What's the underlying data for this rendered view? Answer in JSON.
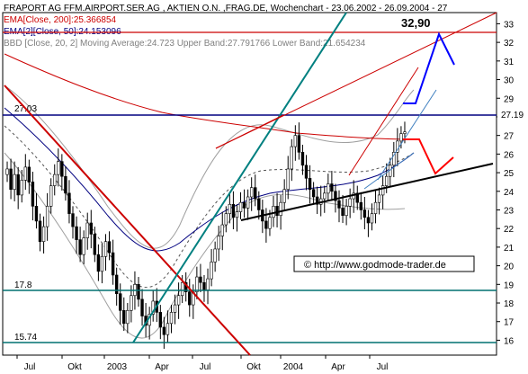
{
  "header": {
    "title": "FRAPORT AG FFM.AIRPORT.SER.AG , AKTIEN O.N. ,FRAG.DE, Wochenchart - 23.06.2002 - 26.09.2004 - 27",
    "ema200": "EMA[Close, 200]:25.366854",
    "ema50": "EMA[2][Close, 50]:24.153096",
    "bbd": "BBD [Close, 20, 2] Moving Average:24.723  Upper Band:27.791766 Lower Band:21.654234"
  },
  "annotations": {
    "target_label": "32,90",
    "current_price": "27.19",
    "level_2703": "27.03",
    "level_178": "17.8",
    "level_1574": "15.74",
    "watermark": "© http://www.godmode-trader.de"
  },
  "chart_data": {
    "type": "candlestick",
    "title": "FRAPORT AG FFM.AIRPORT.SER.AG , AKTIEN O.N. ,FRAG.DE, Wochenchart - 23.06.2002 - 26.09.2004",
    "x_ticks": [
      "Jul",
      "Okt",
      "2003",
      "Apr",
      "Jul",
      "Okt",
      "2004",
      "Apr",
      "Jul"
    ],
    "y_ticks": [
      16,
      17,
      18,
      19,
      20,
      21,
      22,
      23,
      24,
      25,
      26,
      27,
      28,
      29,
      30,
      31,
      32,
      33
    ],
    "ylim": [
      15.2,
      33.6
    ],
    "closes": [
      25.2,
      24.1,
      24.9,
      23.8,
      24.6,
      25.3,
      24.5,
      23.2,
      22.4,
      21.3,
      22.1,
      23.2,
      24.3,
      24.9,
      25.6,
      24.8,
      23.9,
      22.8,
      22.1,
      21.4,
      20.6,
      21.5,
      22.3,
      21.7,
      20.6,
      19.7,
      20.5,
      21.3,
      20.7,
      19.5,
      18.5,
      17.6,
      16.9,
      17.6,
      18.4,
      19.0,
      18.2,
      17.3,
      16.8,
      17.4,
      18.1,
      17.5,
      16.7,
      16.3,
      16.9,
      17.5,
      17.9,
      18.4,
      19.1,
      18.6,
      17.9,
      18.6,
      19.4,
      19.1,
      18.7,
      19.3,
      20.2,
      20.9,
      21.6,
      22.2,
      22.8,
      23.3,
      22.6,
      22.9,
      23.4,
      23.1,
      23.7,
      24.2,
      23.6,
      23.0,
      22.4,
      22.0,
      22.6,
      23.2,
      22.7,
      23.4,
      24.1,
      25.2,
      26.4,
      27.0,
      26.1,
      25.4,
      24.7,
      24.1,
      23.7,
      23.3,
      23.6,
      23.9,
      24.4,
      24.0,
      23.5,
      23.1,
      22.7,
      23.2,
      23.6,
      23.9,
      23.4,
      23.0,
      22.6,
      22.3,
      22.8,
      23.4,
      23.8,
      24.3,
      24.8,
      25.4,
      26.1,
      26.7,
      27.1,
      27.19
    ],
    "horizontal_levels": [
      {
        "label": "27.03",
        "value": 27.03
      },
      {
        "label": "17.8",
        "value": 17.8
      },
      {
        "label": "15.74",
        "value": 15.74
      },
      {
        "label": "",
        "value": 32.9
      }
    ],
    "moving_averages": [
      "EMA[Close, 200]",
      "EMA[2][Close, 50]",
      "BBD [Close, 20, 2]"
    ],
    "current_value": 27.19,
    "target_value": 32.9,
    "grid": false
  }
}
